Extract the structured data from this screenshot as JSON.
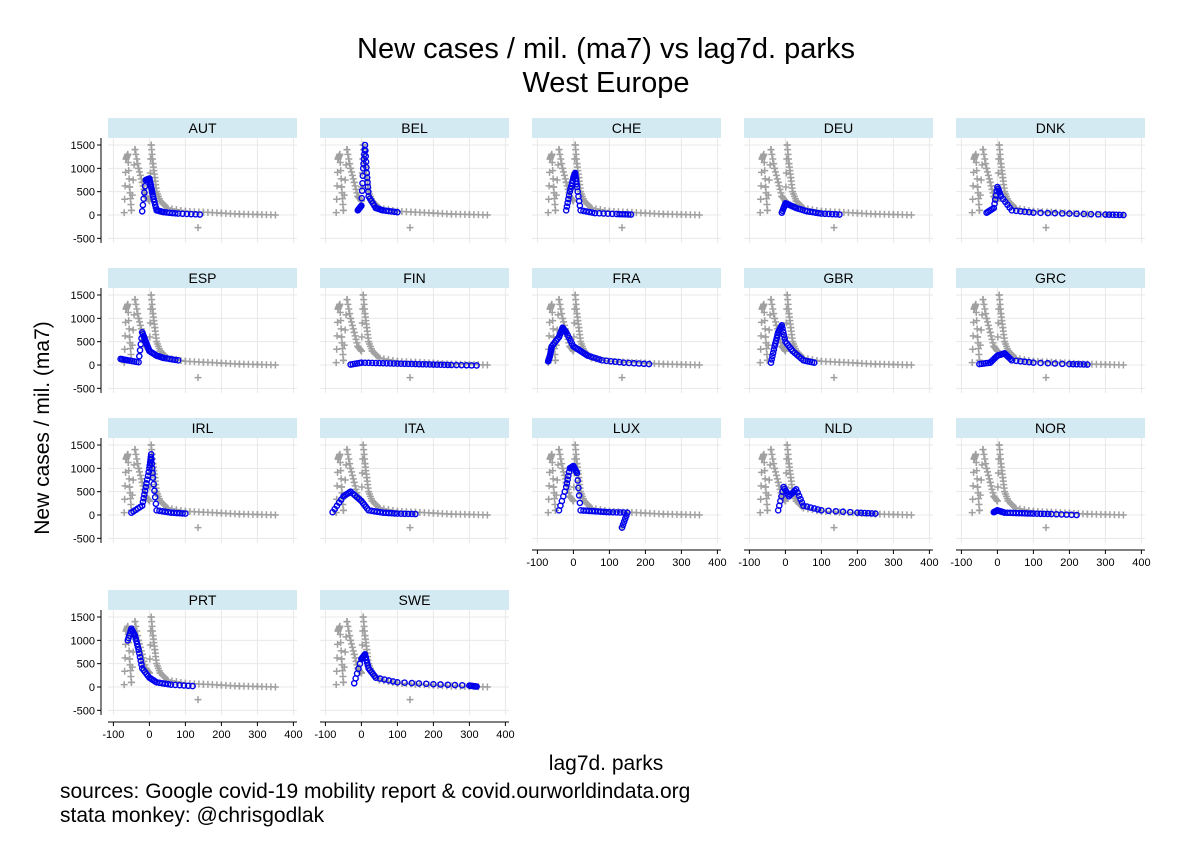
{
  "chart_data": {
    "type": "scatter",
    "title": "New cases / mil. (ma7) vs lag7d. parks",
    "subtitle": "West Europe",
    "xlabel": "lag7d. parks",
    "ylabel": "New cases / mil. (ma7)",
    "xlim": [
      -115,
      410
    ],
    "ylim": [
      -600,
      1650
    ],
    "xticks": [
      "-100",
      "0",
      "100",
      "200",
      "300",
      "400"
    ],
    "yticks": [
      "-500",
      "0",
      "500",
      "1000",
      "1500"
    ],
    "grid": true,
    "notes": [
      "sources: Google covid-19 mobility report & covid.ourworldindata.org",
      "stata monkey: @chrisgodlak"
    ],
    "colors": {
      "highlight": "#0000ee",
      "background": "#a0a0a0",
      "strip": "#d4eaf2"
    },
    "background_series": {
      "description": "all countries pooled, plotted as grey + markers in every panel",
      "points": [
        [
          -70,
          50
        ],
        [
          -65,
          1200
        ],
        [
          -60,
          1300
        ],
        [
          -55,
          600
        ],
        [
          -50,
          100
        ],
        [
          -40,
          1400
        ],
        [
          -30,
          1000
        ],
        [
          -20,
          700
        ],
        [
          -10,
          400
        ],
        [
          0,
          300
        ],
        [
          5,
          1500
        ],
        [
          10,
          1100
        ],
        [
          15,
          800
        ],
        [
          20,
          500
        ],
        [
          30,
          300
        ],
        [
          50,
          150
        ],
        [
          100,
          80
        ],
        [
          150,
          60
        ],
        [
          200,
          40
        ],
        [
          250,
          20
        ],
        [
          300,
          10
        ],
        [
          350,
          0
        ],
        [
          135,
          -270
        ]
      ]
    },
    "panels": [
      {
        "name": "AUT",
        "points": [
          [
            -20,
            80
          ],
          [
            -10,
            750
          ],
          [
            0,
            780
          ],
          [
            5,
            600
          ],
          [
            10,
            400
          ],
          [
            20,
            100
          ],
          [
            40,
            60
          ],
          [
            80,
            30
          ],
          [
            140,
            10
          ]
        ]
      },
      {
        "name": "BEL",
        "points": [
          [
            -10,
            100
          ],
          [
            0,
            200
          ],
          [
            5,
            1000
          ],
          [
            10,
            1500
          ],
          [
            15,
            900
          ],
          [
            20,
            400
          ],
          [
            40,
            150
          ],
          [
            60,
            100
          ],
          [
            100,
            60
          ]
        ]
      },
      {
        "name": "CHE",
        "points": [
          [
            -20,
            100
          ],
          [
            -10,
            500
          ],
          [
            0,
            800
          ],
          [
            5,
            900
          ],
          [
            10,
            600
          ],
          [
            20,
            100
          ],
          [
            60,
            40
          ],
          [
            120,
            20
          ],
          [
            160,
            10
          ]
        ]
      },
      {
        "name": "DEU",
        "points": [
          [
            -10,
            50
          ],
          [
            0,
            250
          ],
          [
            10,
            220
          ],
          [
            30,
            150
          ],
          [
            60,
            80
          ],
          [
            100,
            30
          ],
          [
            150,
            10
          ]
        ]
      },
      {
        "name": "DNK",
        "points": [
          [
            -30,
            50
          ],
          [
            -10,
            150
          ],
          [
            0,
            600
          ],
          [
            10,
            400
          ],
          [
            40,
            100
          ],
          [
            100,
            50
          ],
          [
            200,
            30
          ],
          [
            300,
            10
          ],
          [
            350,
            0
          ]
        ]
      },
      {
        "name": "ESP",
        "points": [
          [
            -80,
            130
          ],
          [
            -60,
            100
          ],
          [
            -30,
            60
          ],
          [
            -20,
            700
          ],
          [
            -10,
            500
          ],
          [
            0,
            300
          ],
          [
            20,
            200
          ],
          [
            40,
            150
          ],
          [
            80,
            100
          ]
        ]
      },
      {
        "name": "FIN",
        "points": [
          [
            -30,
            10
          ],
          [
            0,
            50
          ],
          [
            50,
            40
          ],
          [
            100,
            30
          ],
          [
            150,
            20
          ],
          [
            200,
            10
          ],
          [
            250,
            0
          ],
          [
            320,
            -10
          ]
        ]
      },
      {
        "name": "FRA",
        "points": [
          [
            -70,
            80
          ],
          [
            -65,
            200
          ],
          [
            -60,
            400
          ],
          [
            -40,
            600
          ],
          [
            -30,
            800
          ],
          [
            -20,
            700
          ],
          [
            0,
            400
          ],
          [
            20,
            300
          ],
          [
            40,
            200
          ],
          [
            80,
            100
          ],
          [
            140,
            50
          ],
          [
            210,
            20
          ]
        ]
      },
      {
        "name": "GBR",
        "points": [
          [
            -40,
            50
          ],
          [
            -30,
            400
          ],
          [
            -20,
            700
          ],
          [
            -10,
            850
          ],
          [
            0,
            500
          ],
          [
            20,
            300
          ],
          [
            50,
            100
          ],
          [
            80,
            50
          ]
        ]
      },
      {
        "name": "GRC",
        "points": [
          [
            -50,
            20
          ],
          [
            -20,
            50
          ],
          [
            0,
            200
          ],
          [
            20,
            250
          ],
          [
            40,
            100
          ],
          [
            100,
            50
          ],
          [
            200,
            20
          ],
          [
            250,
            10
          ]
        ]
      },
      {
        "name": "IRL",
        "points": [
          [
            -50,
            50
          ],
          [
            -20,
            200
          ],
          [
            -10,
            600
          ],
          [
            0,
            1000
          ],
          [
            5,
            1300
          ],
          [
            10,
            800
          ],
          [
            20,
            100
          ],
          [
            60,
            50
          ],
          [
            100,
            30
          ]
        ]
      },
      {
        "name": "ITA",
        "points": [
          [
            -80,
            60
          ],
          [
            -50,
            400
          ],
          [
            -30,
            500
          ],
          [
            0,
            300
          ],
          [
            20,
            100
          ],
          [
            60,
            50
          ],
          [
            100,
            30
          ],
          [
            150,
            20
          ]
        ]
      },
      {
        "name": "LUX",
        "points": [
          [
            -40,
            100
          ],
          [
            -20,
            600
          ],
          [
            -10,
            1000
          ],
          [
            0,
            1050
          ],
          [
            10,
            900
          ],
          [
            20,
            100
          ],
          [
            60,
            80
          ],
          [
            100,
            60
          ],
          [
            150,
            50
          ],
          [
            135,
            -270
          ]
        ]
      },
      {
        "name": "NLD",
        "points": [
          [
            -20,
            100
          ],
          [
            -5,
            600
          ],
          [
            10,
            400
          ],
          [
            30,
            550
          ],
          [
            50,
            200
          ],
          [
            100,
            100
          ],
          [
            200,
            50
          ],
          [
            250,
            30
          ]
        ]
      },
      {
        "name": "NOR",
        "points": [
          [
            -10,
            60
          ],
          [
            0,
            100
          ],
          [
            20,
            50
          ],
          [
            60,
            40
          ],
          [
            100,
            30
          ],
          [
            150,
            20
          ],
          [
            220,
            0
          ]
        ]
      },
      {
        "name": "PRT",
        "points": [
          [
            -60,
            1000
          ],
          [
            -50,
            1250
          ],
          [
            -40,
            1100
          ],
          [
            -30,
            800
          ],
          [
            -20,
            400
          ],
          [
            0,
            200
          ],
          [
            20,
            100
          ],
          [
            60,
            50
          ],
          [
            120,
            20
          ]
        ]
      },
      {
        "name": "SWE",
        "points": [
          [
            -20,
            80
          ],
          [
            0,
            600
          ],
          [
            10,
            700
          ],
          [
            20,
            400
          ],
          [
            40,
            200
          ],
          [
            100,
            100
          ],
          [
            200,
            60
          ],
          [
            300,
            30
          ],
          [
            320,
            10
          ]
        ]
      }
    ]
  }
}
